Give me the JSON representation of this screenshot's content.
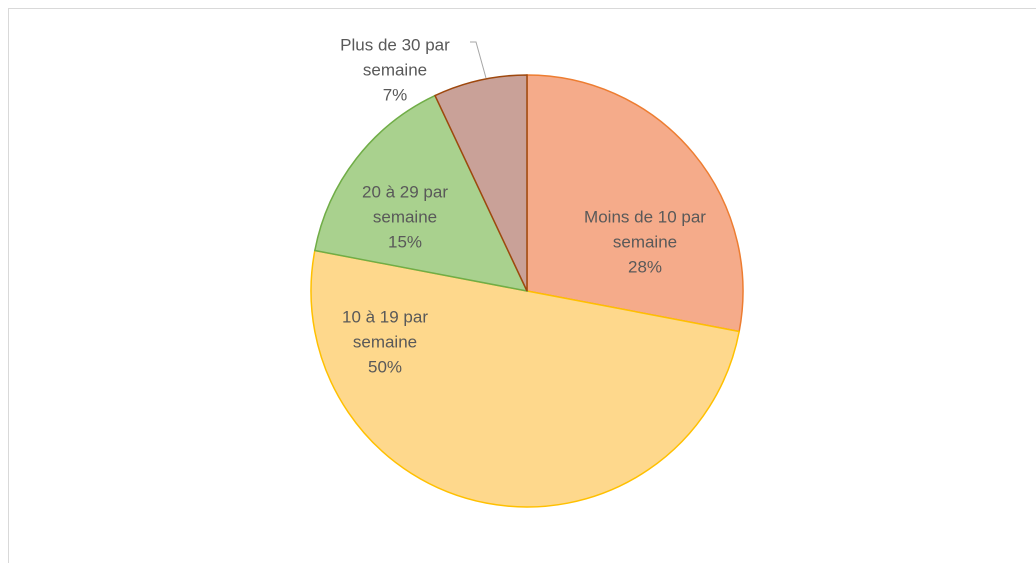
{
  "chart_data": {
    "type": "pie",
    "categories": [
      "Moins de 10 par semaine",
      "10 à 19 par semaine",
      "20 à 29 par semaine",
      "Plus de 30 par semaine"
    ],
    "values": [
      28,
      50,
      15,
      7
    ],
    "value_labels": [
      "28%",
      "50%",
      "15%",
      "7%"
    ],
    "colors": [
      "#f5ab8a",
      "#fed88c",
      "#a9d18e",
      "#c9a198"
    ],
    "stroke_colors": [
      "#ed7d31",
      "#ffc000",
      "#70ad47",
      "#9e480e"
    ]
  }
}
